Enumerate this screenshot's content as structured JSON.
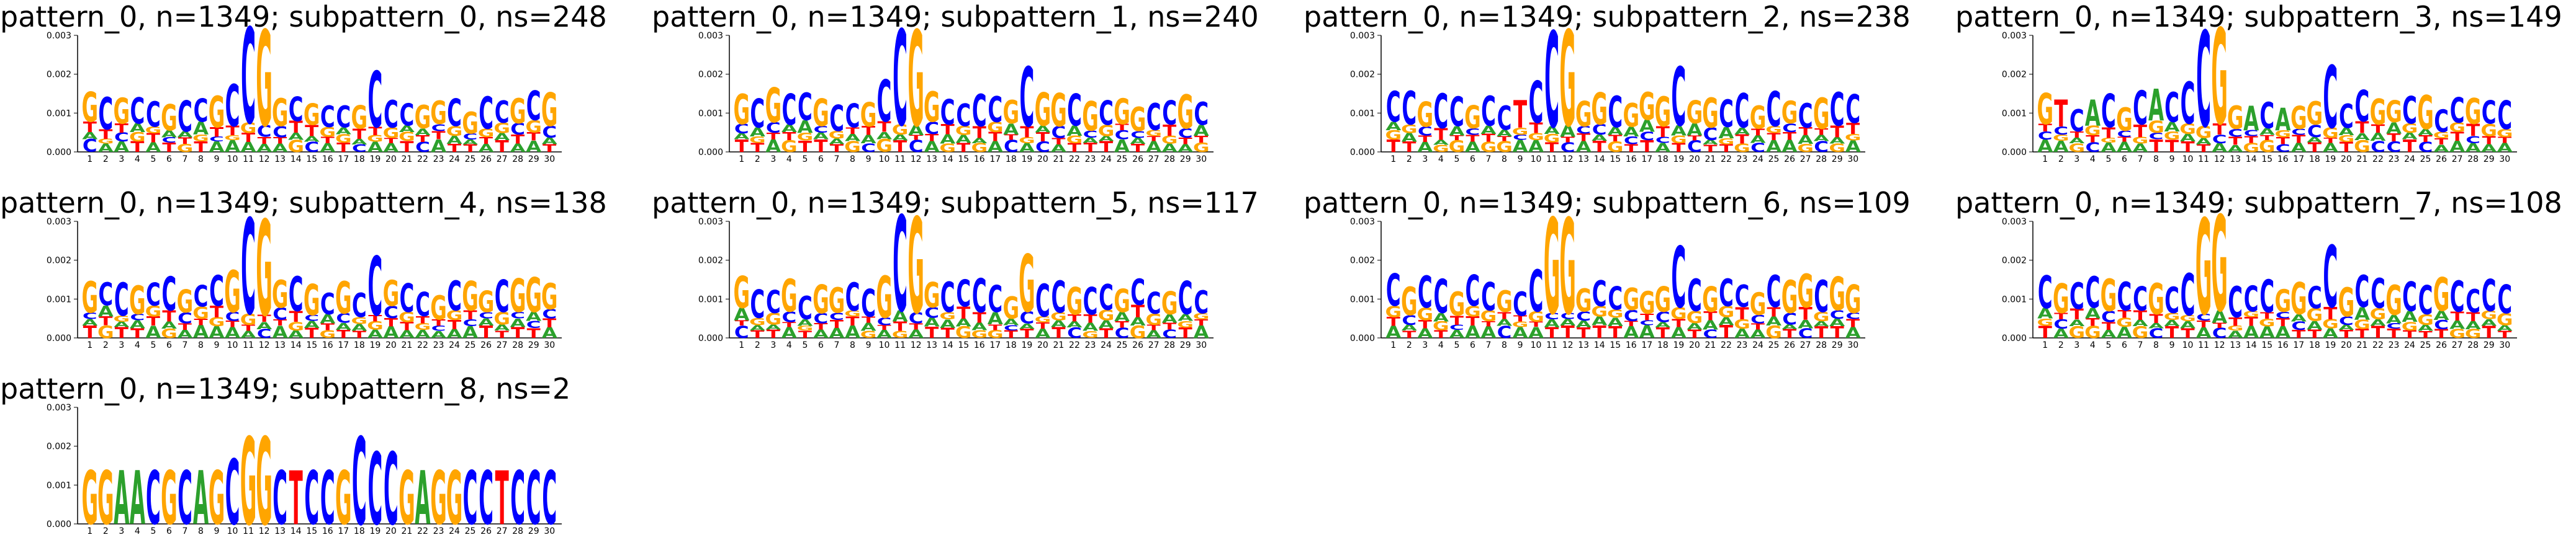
{
  "letter_colors": {
    "A": "#2ca02c",
    "C": "#0000ff",
    "G": "#ffa500",
    "T": "#ff0000"
  },
  "chart_data": [
    {
      "type": "sequence-logo",
      "title": "pattern_0, n=1349; subpattern_0, ns=248",
      "consensus": "GCGCCGCCGCCGGCGCCGCCCGGCGCCGCG",
      "ylim": [
        0,
        0.003
      ],
      "yticks": [
        "0.000",
        "0.001",
        "0.002",
        "0.003"
      ],
      "x": [
        1,
        2,
        3,
        4,
        5,
        6,
        7,
        8,
        9,
        10,
        11,
        12,
        13,
        14,
        15,
        16,
        17,
        18,
        19,
        20,
        21,
        22,
        23,
        24,
        25,
        26,
        27,
        28,
        29,
        30
      ]
    },
    {
      "type": "sequence-logo",
      "title": "pattern_0, n=1349; subpattern_1, ns=240",
      "consensus": "GCGCCGCCGCCGGCCCCGCGGCGCGGCCGC",
      "ylim": [
        0,
        0.003
      ],
      "yticks": [
        "0.000",
        "0.001",
        "0.002",
        "0.003"
      ],
      "x": [
        1,
        2,
        3,
        4,
        5,
        6,
        7,
        8,
        9,
        10,
        11,
        12,
        13,
        14,
        15,
        16,
        17,
        18,
        19,
        20,
        21,
        22,
        23,
        24,
        25,
        26,
        27,
        28,
        29,
        30
      ]
    },
    {
      "type": "sequence-logo",
      "title": "pattern_0, n=1349; subpattern_2, ns=238",
      "consensus": "CCGCCGCCTCCGGGCGGGCGGCCGCGCGCC",
      "ylim": [
        0,
        0.003
      ],
      "yticks": [
        "0.000",
        "0.001",
        "0.002",
        "0.003"
      ],
      "x": [
        1,
        2,
        3,
        4,
        5,
        6,
        7,
        8,
        9,
        10,
        11,
        12,
        13,
        14,
        15,
        16,
        17,
        18,
        19,
        20,
        21,
        22,
        23,
        24,
        25,
        26,
        27,
        28,
        29,
        30
      ]
    },
    {
      "type": "sequence-logo",
      "title": "pattern_0, n=1349; subpattern_3, ns=149",
      "consensus": "GTCACGCACCCGGACAGGCCCGGCGCCGCC",
      "ylim": [
        0,
        0.003
      ],
      "yticks": [
        "0.000",
        "0.001",
        "0.002",
        "0.003"
      ],
      "x": [
        1,
        2,
        3,
        4,
        5,
        6,
        7,
        8,
        9,
        10,
        11,
        12,
        13,
        14,
        15,
        16,
        17,
        18,
        19,
        20,
        21,
        22,
        23,
        24,
        25,
        26,
        27,
        28,
        29,
        30
      ]
    },
    {
      "type": "sequence-logo",
      "title": "pattern_0, n=1349; subpattern_4, ns=138",
      "consensus": "GCCGCCGCCGCGGCGCGCCGCCGCGGCGGG",
      "ylim": [
        0,
        0.003
      ],
      "yticks": [
        "0.000",
        "0.001",
        "0.002",
        "0.003"
      ],
      "x": [
        1,
        2,
        3,
        4,
        5,
        6,
        7,
        8,
        9,
        10,
        11,
        12,
        13,
        14,
        15,
        16,
        17,
        18,
        19,
        20,
        21,
        22,
        23,
        24,
        25,
        26,
        27,
        28,
        29,
        30
      ]
    },
    {
      "type": "sequence-logo",
      "title": "pattern_0, n=1349; subpattern_5, ns=117",
      "consensus": "GCCGCGGCCGCGGCCCCGGCCGCCGCCGCC",
      "ylim": [
        0,
        0.003
      ],
      "yticks": [
        "0.000",
        "0.001",
        "0.002",
        "0.003"
      ],
      "x": [
        1,
        2,
        3,
        4,
        5,
        6,
        7,
        8,
        9,
        10,
        11,
        12,
        13,
        14,
        15,
        16,
        17,
        18,
        19,
        20,
        21,
        22,
        23,
        24,
        25,
        26,
        27,
        28,
        29,
        30
      ]
    },
    {
      "type": "sequence-logo",
      "title": "pattern_0, n=1349; subpattern_6, ns=109",
      "consensus": "CGCCGCCGCCGGGCCGGGCCGCCGCGGCGG",
      "ylim": [
        0,
        0.003
      ],
      "yticks": [
        "0.000",
        "0.001",
        "0.002",
        "0.003"
      ],
      "x": [
        1,
        2,
        3,
        4,
        5,
        6,
        7,
        8,
        9,
        10,
        11,
        12,
        13,
        14,
        15,
        16,
        17,
        18,
        19,
        20,
        21,
        22,
        23,
        24,
        25,
        26,
        27,
        28,
        29,
        30
      ]
    },
    {
      "type": "sequence-logo",
      "title": "pattern_0, n=1349; subpattern_7, ns=108",
      "consensus": "CGCCGCCGCCGGCCCGGCCGCCGCCGCCCC",
      "ylim": [
        0,
        0.003
      ],
      "yticks": [
        "0.000",
        "0.001",
        "0.002",
        "0.003"
      ],
      "x": [
        1,
        2,
        3,
        4,
        5,
        6,
        7,
        8,
        9,
        10,
        11,
        12,
        13,
        14,
        15,
        16,
        17,
        18,
        19,
        20,
        21,
        22,
        23,
        24,
        25,
        26,
        27,
        28,
        29,
        30
      ]
    },
    {
      "type": "sequence-logo",
      "title": "pattern_0, n=1349; subpattern_8, ns=2",
      "consensus": "GGAACGCAGCGGCTCCGCCCGAGGCCTCCC",
      "ylim": [
        0,
        0.003
      ],
      "yticks": [
        "0.000",
        "0.001",
        "0.002",
        "0.003"
      ],
      "x": [
        1,
        2,
        3,
        4,
        5,
        6,
        7,
        8,
        9,
        10,
        11,
        12,
        13,
        14,
        15,
        16,
        17,
        18,
        19,
        20,
        21,
        22,
        23,
        24,
        25,
        26,
        27,
        28,
        29,
        30
      ]
    }
  ]
}
